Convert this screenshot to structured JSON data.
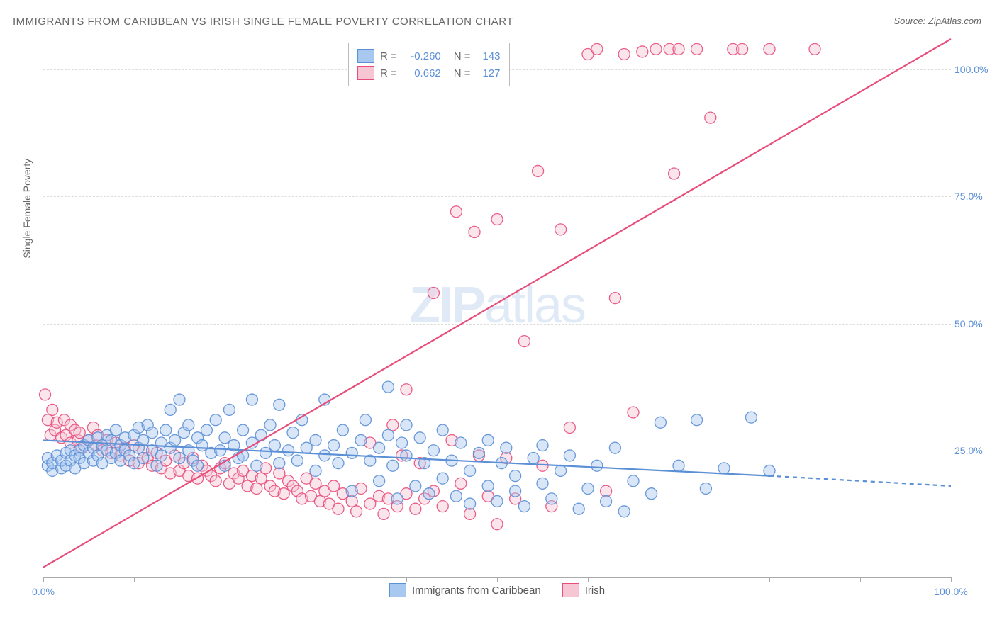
{
  "title": "IMMIGRANTS FROM CARIBBEAN VS IRISH SINGLE FEMALE POVERTY CORRELATION CHART",
  "source_prefix": "Source: ",
  "source_name": "ZipAtlas.com",
  "y_axis_title": "Single Female Poverty",
  "watermark": "ZIPatlas",
  "chart": {
    "type": "scatter",
    "xlim": [
      0,
      100
    ],
    "ylim": [
      0,
      106
    ],
    "x_ticks": [
      0,
      10,
      20,
      30,
      40,
      50,
      60,
      70,
      80,
      90,
      100
    ],
    "x_tick_labels": {
      "0": "0.0%",
      "100": "100.0%"
    },
    "y_ticks": [
      25,
      50,
      75,
      100
    ],
    "y_tick_labels": [
      "25.0%",
      "50.0%",
      "75.0%",
      "100.0%"
    ],
    "background_color": "#ffffff",
    "grid_color": "#dddddd",
    "axis_color": "#aaaaaa",
    "marker_radius": 8,
    "marker_opacity": 0.45,
    "marker_stroke_opacity": 0.9,
    "series": [
      {
        "name": "Immigrants from Caribbean",
        "color_fill": "#a8c8ef",
        "color_stroke": "#5b8fd6",
        "r_value": "-0.260",
        "n_value": "143",
        "trend": {
          "x1": 0,
          "y1": 27,
          "x2": 80,
          "y2": 20,
          "x2_dash": 100,
          "y2_dash": 18,
          "width": 2.2
        },
        "points": [
          [
            0.5,
            22
          ],
          [
            0.5,
            23.5
          ],
          [
            1,
            21
          ],
          [
            1,
            22.5
          ],
          [
            1.5,
            24
          ],
          [
            2,
            21.5
          ],
          [
            2,
            23
          ],
          [
            2.5,
            24.5
          ],
          [
            2.5,
            22
          ],
          [
            3,
            25
          ],
          [
            3,
            23
          ],
          [
            3.5,
            24
          ],
          [
            3.5,
            21.5
          ],
          [
            4,
            25
          ],
          [
            4,
            23.5
          ],
          [
            4.5,
            26
          ],
          [
            4.5,
            22.5
          ],
          [
            5,
            24.5
          ],
          [
            5,
            27
          ],
          [
            5.5,
            23
          ],
          [
            5.5,
            25.5
          ],
          [
            6,
            24
          ],
          [
            6,
            27.5
          ],
          [
            6.5,
            22.5
          ],
          [
            6.5,
            26
          ],
          [
            7,
            25
          ],
          [
            7,
            28
          ],
          [
            7.5,
            23.5
          ],
          [
            7.5,
            27
          ],
          [
            8,
            24.5
          ],
          [
            8,
            29
          ],
          [
            8.5,
            26
          ],
          [
            8.5,
            23
          ],
          [
            9,
            27.5
          ],
          [
            9,
            25
          ],
          [
            9.5,
            24
          ],
          [
            10,
            28
          ],
          [
            10,
            22.5
          ],
          [
            10.5,
            29.5
          ],
          [
            10.5,
            25.5
          ],
          [
            11,
            27
          ],
          [
            11,
            23.5
          ],
          [
            11.5,
            30
          ],
          [
            12,
            25
          ],
          [
            12,
            28.5
          ],
          [
            12.5,
            22
          ],
          [
            13,
            26.5
          ],
          [
            13,
            24
          ],
          [
            13.5,
            29
          ],
          [
            14,
            25.5
          ],
          [
            14,
            33
          ],
          [
            14.5,
            27
          ],
          [
            15,
            23.5
          ],
          [
            15,
            35
          ],
          [
            15.5,
            28.5
          ],
          [
            16,
            25
          ],
          [
            16,
            30
          ],
          [
            16.5,
            23
          ],
          [
            17,
            27.5
          ],
          [
            17,
            22
          ],
          [
            17.5,
            26
          ],
          [
            18,
            29
          ],
          [
            18.5,
            24.5
          ],
          [
            19,
            31
          ],
          [
            19.5,
            25
          ],
          [
            20,
            27.5
          ],
          [
            20,
            22
          ],
          [
            20.5,
            33
          ],
          [
            21,
            26
          ],
          [
            21.5,
            23.5
          ],
          [
            22,
            29
          ],
          [
            22,
            24
          ],
          [
            23,
            35
          ],
          [
            23,
            26.5
          ],
          [
            23.5,
            22
          ],
          [
            24,
            28
          ],
          [
            24.5,
            24.5
          ],
          [
            25,
            30
          ],
          [
            25.5,
            26
          ],
          [
            26,
            22.5
          ],
          [
            26,
            34
          ],
          [
            27,
            25
          ],
          [
            27.5,
            28.5
          ],
          [
            28,
            23
          ],
          [
            28.5,
            31
          ],
          [
            29,
            25.5
          ],
          [
            30,
            27
          ],
          [
            30,
            21
          ],
          [
            31,
            24
          ],
          [
            31,
            35
          ],
          [
            32,
            26
          ],
          [
            32.5,
            22.5
          ],
          [
            33,
            29
          ],
          [
            34,
            24.5
          ],
          [
            34,
            17
          ],
          [
            35,
            27
          ],
          [
            35.5,
            31
          ],
          [
            36,
            23
          ],
          [
            37,
            25.5
          ],
          [
            37,
            19
          ],
          [
            38,
            28
          ],
          [
            38,
            37.5
          ],
          [
            38.5,
            22
          ],
          [
            39,
            15.5
          ],
          [
            39.5,
            26.5
          ],
          [
            40,
            24
          ],
          [
            40,
            30
          ],
          [
            41,
            18
          ],
          [
            41.5,
            27.5
          ],
          [
            42,
            22.5
          ],
          [
            42.5,
            16.5
          ],
          [
            43,
            25
          ],
          [
            44,
            29
          ],
          [
            44,
            19.5
          ],
          [
            45,
            23
          ],
          [
            45.5,
            16
          ],
          [
            46,
            26.5
          ],
          [
            47,
            21
          ],
          [
            47,
            14.5
          ],
          [
            48,
            24.5
          ],
          [
            49,
            18
          ],
          [
            49,
            27
          ],
          [
            50,
            15
          ],
          [
            50.5,
            22.5
          ],
          [
            51,
            25.5
          ],
          [
            52,
            17
          ],
          [
            52,
            20
          ],
          [
            53,
            14
          ],
          [
            54,
            23.5
          ],
          [
            55,
            18.5
          ],
          [
            55,
            26
          ],
          [
            56,
            15.5
          ],
          [
            57,
            21
          ],
          [
            58,
            24
          ],
          [
            59,
            13.5
          ],
          [
            60,
            17.5
          ],
          [
            61,
            22
          ],
          [
            62,
            15
          ],
          [
            63,
            25.5
          ],
          [
            64,
            13
          ],
          [
            65,
            19
          ],
          [
            67,
            16.5
          ],
          [
            68,
            30.5
          ],
          [
            70,
            22
          ],
          [
            72,
            31
          ],
          [
            73,
            17.5
          ],
          [
            75,
            21.5
          ],
          [
            78,
            31.5
          ],
          [
            80,
            21
          ]
        ]
      },
      {
        "name": "Irish",
        "color_fill": "#f7c6d4",
        "color_stroke": "#e84d7a",
        "r_value": "0.662",
        "n_value": "127",
        "trend": {
          "x1": 0,
          "y1": 2,
          "x2": 100,
          "y2": 106,
          "width": 2.2
        },
        "points": [
          [
            0.2,
            36
          ],
          [
            0.5,
            31
          ],
          [
            0.8,
            28
          ],
          [
            1,
            33
          ],
          [
            1.3,
            29
          ],
          [
            1.5,
            30.5
          ],
          [
            2,
            27.5
          ],
          [
            2.3,
            31
          ],
          [
            2.5,
            28
          ],
          [
            3,
            30
          ],
          [
            3,
            26.5
          ],
          [
            3.5,
            29
          ],
          [
            3.8,
            27
          ],
          [
            4,
            28.5
          ],
          [
            4.3,
            25.5
          ],
          [
            5,
            27
          ],
          [
            5.5,
            29.5
          ],
          [
            5.8,
            26
          ],
          [
            6,
            28
          ],
          [
            6.5,
            25
          ],
          [
            7,
            27
          ],
          [
            7.5,
            24.5
          ],
          [
            8,
            26.5
          ],
          [
            8.5,
            24
          ],
          [
            9,
            25.5
          ],
          [
            9.5,
            23
          ],
          [
            10,
            26
          ],
          [
            10.5,
            22.5
          ],
          [
            11,
            25
          ],
          [
            11.5,
            23.5
          ],
          [
            12,
            22
          ],
          [
            12.5,
            24.5
          ],
          [
            13,
            21.5
          ],
          [
            13.5,
            23
          ],
          [
            14,
            20.5
          ],
          [
            14.5,
            24
          ],
          [
            15,
            21
          ],
          [
            15.5,
            22.5
          ],
          [
            16,
            20
          ],
          [
            16.5,
            23.5
          ],
          [
            17,
            19.5
          ],
          [
            17.5,
            22
          ],
          [
            18,
            21
          ],
          [
            18.5,
            20
          ],
          [
            19,
            19
          ],
          [
            19.5,
            21.5
          ],
          [
            20,
            22.5
          ],
          [
            20.5,
            18.5
          ],
          [
            21,
            20.5
          ],
          [
            21.5,
            19.5
          ],
          [
            22,
            21
          ],
          [
            22.5,
            18
          ],
          [
            23,
            20
          ],
          [
            23.5,
            17.5
          ],
          [
            24,
            19.5
          ],
          [
            24.5,
            21.5
          ],
          [
            25,
            18
          ],
          [
            25.5,
            17
          ],
          [
            26,
            20.5
          ],
          [
            26.5,
            16.5
          ],
          [
            27,
            19
          ],
          [
            27.5,
            18
          ],
          [
            28,
            17
          ],
          [
            28.5,
            15.5
          ],
          [
            29,
            19.5
          ],
          [
            29.5,
            16
          ],
          [
            30,
            18.5
          ],
          [
            30.5,
            15
          ],
          [
            31,
            17
          ],
          [
            31.5,
            14.5
          ],
          [
            32,
            18
          ],
          [
            32.5,
            13.5
          ],
          [
            33,
            16.5
          ],
          [
            34,
            15
          ],
          [
            34.5,
            13
          ],
          [
            35,
            17.5
          ],
          [
            36,
            14.5
          ],
          [
            36,
            26.5
          ],
          [
            37,
            16
          ],
          [
            37.5,
            12.5
          ],
          [
            38,
            15.5
          ],
          [
            38.5,
            30
          ],
          [
            39,
            14
          ],
          [
            39.5,
            24
          ],
          [
            40,
            16.5
          ],
          [
            40,
            37
          ],
          [
            41,
            13.5
          ],
          [
            41.5,
            22.5
          ],
          [
            42,
            15.5
          ],
          [
            43,
            17
          ],
          [
            43,
            56
          ],
          [
            44,
            14
          ],
          [
            45,
            27
          ],
          [
            45.5,
            72
          ],
          [
            46,
            18.5
          ],
          [
            47,
            12.5
          ],
          [
            47.5,
            68
          ],
          [
            48,
            24
          ],
          [
            49,
            16
          ],
          [
            50,
            70.5
          ],
          [
            50,
            10.5
          ],
          [
            51,
            23.5
          ],
          [
            52,
            15.5
          ],
          [
            53,
            46.5
          ],
          [
            54.5,
            80
          ],
          [
            55,
            22
          ],
          [
            56,
            14
          ],
          [
            57,
            68.5
          ],
          [
            58,
            29.5
          ],
          [
            60,
            103
          ],
          [
            61,
            104
          ],
          [
            62,
            17
          ],
          [
            63,
            55
          ],
          [
            64,
            103
          ],
          [
            65,
            32.5
          ],
          [
            66,
            103.5
          ],
          [
            67.5,
            104
          ],
          [
            69,
            104
          ],
          [
            69.5,
            79.5
          ],
          [
            70,
            104
          ],
          [
            72,
            104
          ],
          [
            73.5,
            90.5
          ],
          [
            76,
            104
          ],
          [
            77,
            104
          ],
          [
            80,
            104
          ],
          [
            85,
            104
          ]
        ]
      }
    ]
  },
  "legend_labels": {
    "r_prefix": "R = ",
    "n_prefix": "N = "
  }
}
